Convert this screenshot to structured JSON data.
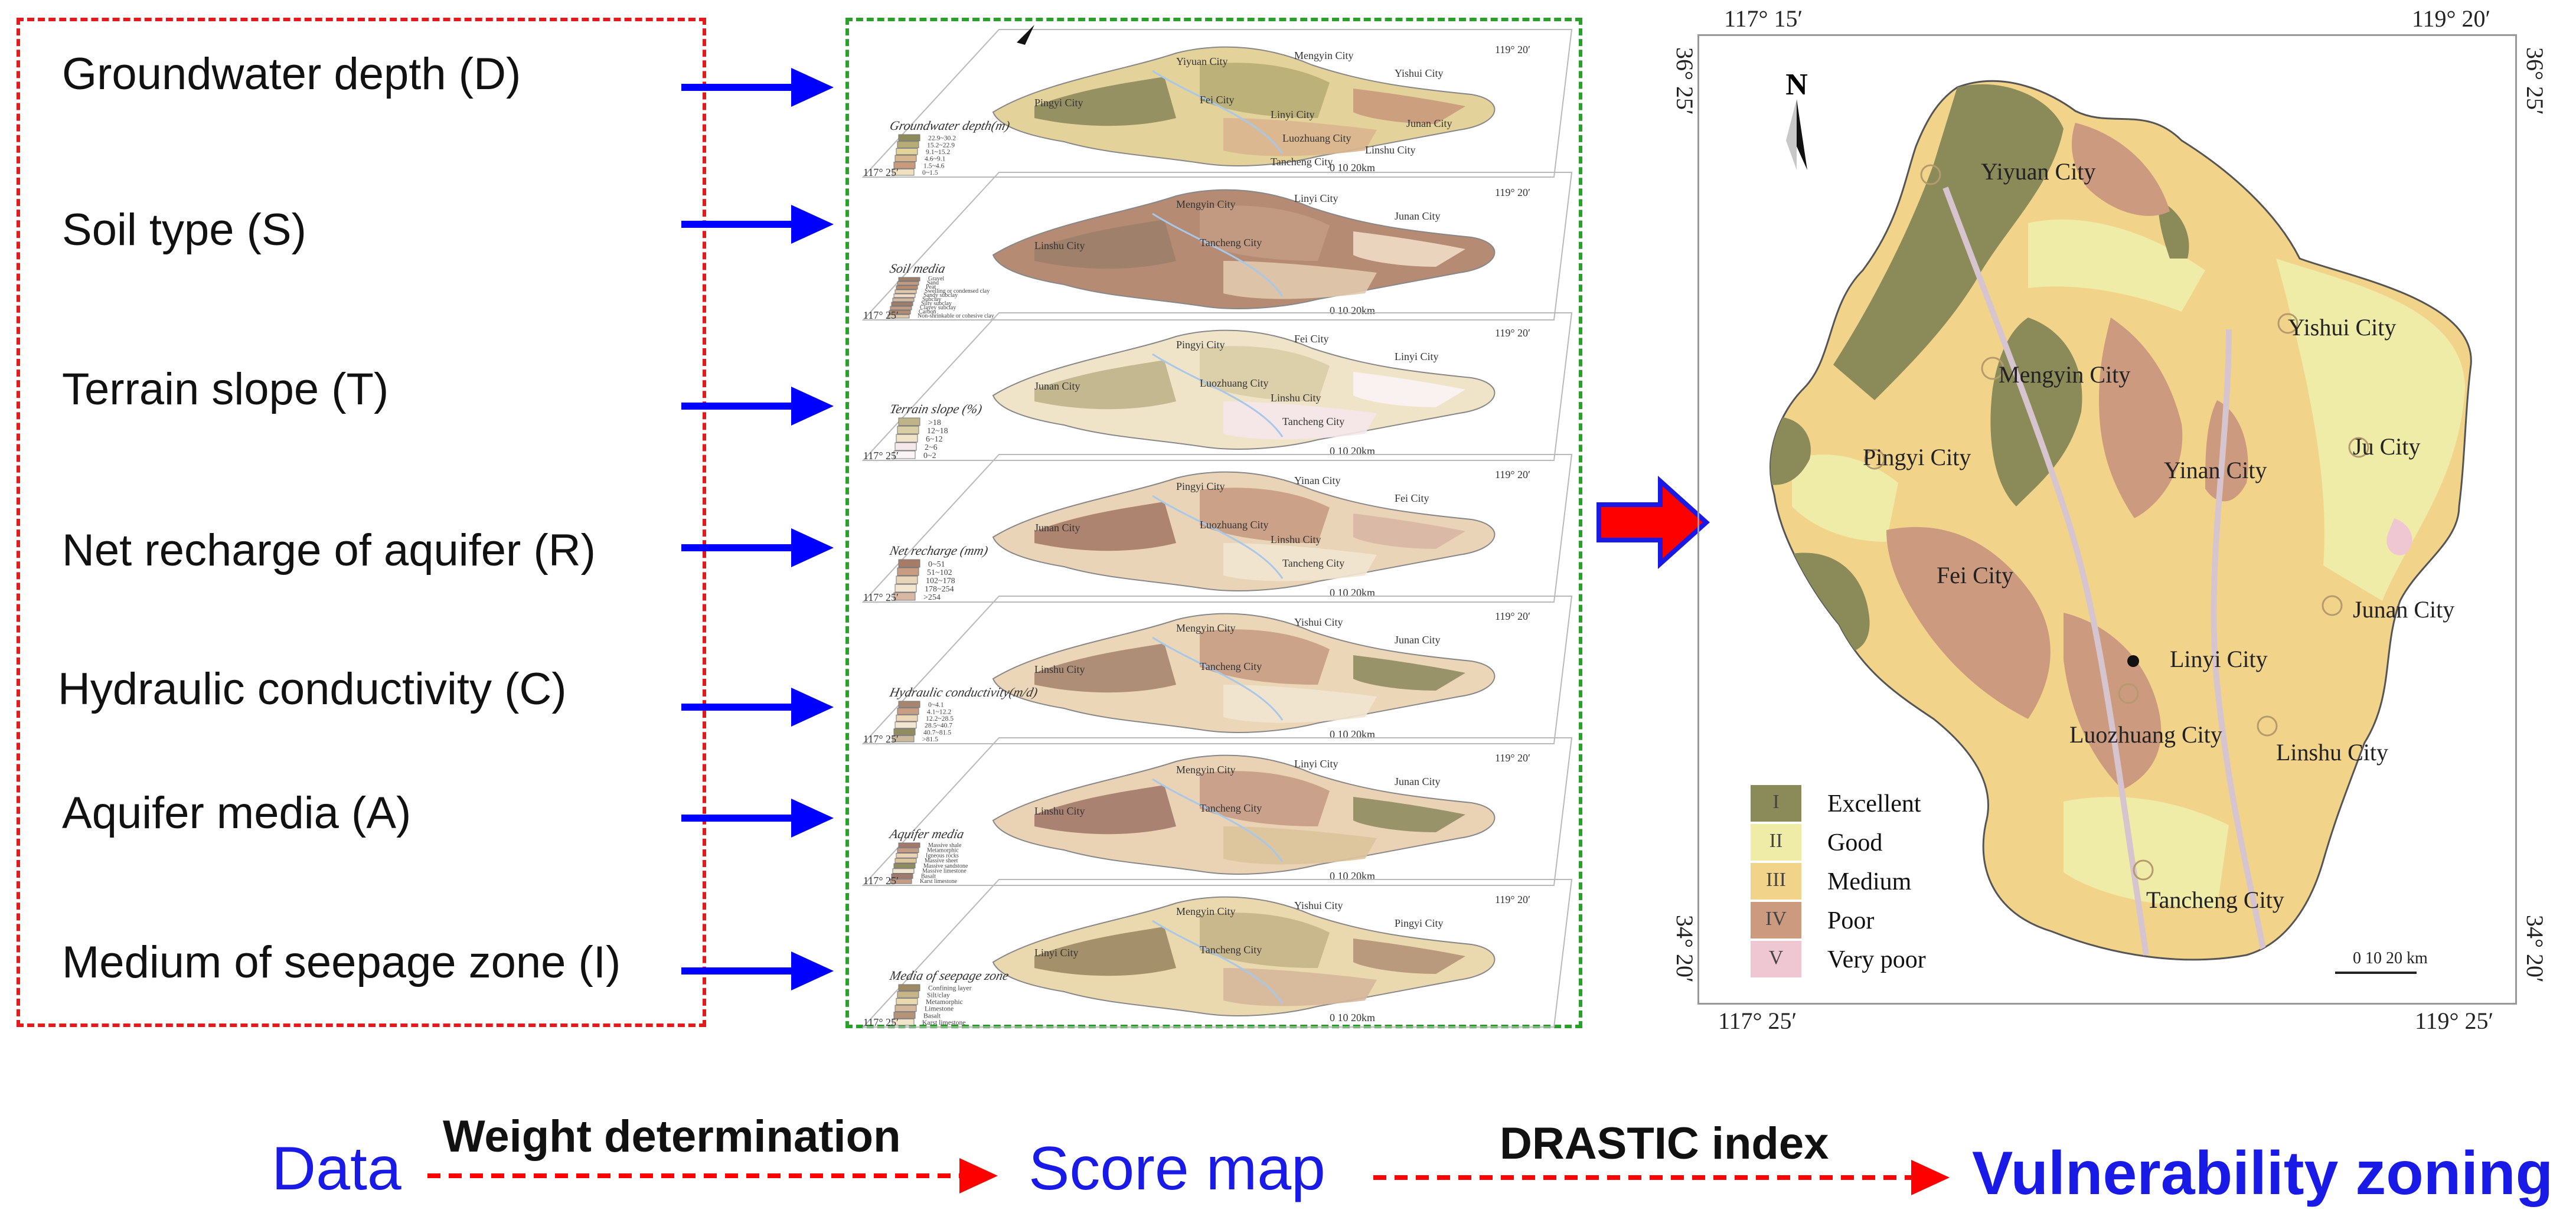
{
  "data_factors": [
    {
      "label": "Groundwater depth (D)"
    },
    {
      "label": "Soil type (S)"
    },
    {
      "label": "Terrain slope (T)"
    },
    {
      "label": "Net recharge of aquifer (R)"
    },
    {
      "label": "Hydraulic conductivity (C)"
    },
    {
      "label": "Aquifer media (A)"
    },
    {
      "label": "Medium of seepage zone (I)"
    }
  ],
  "score_maps": [
    {
      "legend_title": "Groundwater depth(m)",
      "classes": [
        "22.9~30.2",
        "15.2~22.9",
        "9.1~15.2",
        "4.6~9.1",
        "1.5~4.6",
        "0~1.5"
      ],
      "places": [
        "Yiyuan City",
        "Mengyin City",
        "Yishui City",
        "Pingyi City",
        "Fei City",
        "Linyi City",
        "Luozhuang City",
        "Junan City",
        "Linshu City",
        "Tancheng City"
      ]
    },
    {
      "legend_title": "Soil media",
      "classes": [
        "Gravel",
        "Sand",
        "Peat",
        "Swelling or condensed clay",
        "Sandy subclay",
        "Subclay",
        "Silty subclay",
        "Clayey subclay",
        "Carbon",
        "Non-shrinkable or cohesive clay"
      ],
      "places": [
        "Mengyin City",
        "Linyi City",
        "Junan City",
        "Linshu City",
        "Tancheng City"
      ]
    },
    {
      "legend_title": "Terrain slope (%)",
      "classes": [
        ">18",
        "12~18",
        "6~12",
        "2~6",
        "0~2"
      ],
      "places": [
        "Pingyi City",
        "Fei City",
        "Linyi City",
        "Junan City",
        "Luozhuang City",
        "Linshu City",
        "Tancheng City"
      ]
    },
    {
      "legend_title": "Net recharge (mm)",
      "classes": [
        "0~51",
        "51~102",
        "102~178",
        "178~254",
        ">254"
      ],
      "places": [
        "Pingyi City",
        "Yinan City",
        "Fei City",
        "Junan City",
        "Luozhuang City",
        "Linshu City",
        "Tancheng City"
      ]
    },
    {
      "legend_title": "Hydraulic conductivity(m/d)",
      "classes": [
        "0~4.1",
        "4.1~12.2",
        "12.2~28.5",
        "28.5~40.7",
        "40.7~81.5",
        ">81.5"
      ],
      "places": [
        "Mengyin City",
        "Yishui City",
        "Junan City",
        "Linshu City",
        "Tancheng City"
      ]
    },
    {
      "legend_title": "Aquifer media",
      "classes": [
        "Massive shale",
        "Metamorphic",
        "Igneous rocks",
        "Massive sheet",
        "Massive sandstone",
        "Massive limestone",
        "Basalt",
        "Karst limestone"
      ],
      "places": [
        "Mengyin City",
        "Linyi City",
        "Junan City",
        "Linshu City",
        "Tancheng City"
      ]
    },
    {
      "legend_title": "Media of seepage zone",
      "classes": [
        "Confining layer",
        "Silt/clay",
        "Metamorphic",
        "Limestone",
        "Basalt",
        "Karst limestone"
      ],
      "places": [
        "Mengyin City",
        "Yishui City",
        "Pingyi City",
        "Linyi City",
        "Tancheng City"
      ]
    }
  ],
  "score_map_scalebar": "0   10  20km",
  "score_map_coords": {
    "left": "117° 25′",
    "right": "119° 20′"
  },
  "result_map": {
    "north_label": "N",
    "coords": {
      "top_left": "117° 15′",
      "top_right": "119° 20′",
      "bottom_left": "117° 25′",
      "bottom_right": "119° 25′",
      "left_top": "36° 25′",
      "left_bottom": "34° 20′",
      "right_top": "36° 25′",
      "right_bottom": "34° 20′"
    },
    "cities": [
      "Yiyuan City",
      "Yishui City",
      "Mengyin City",
      "Pingyi City",
      "Yinan City",
      "Ju City",
      "Fei City",
      "Junan City",
      "Linyi City",
      "Luozhuang City",
      "Linshu City",
      "Tancheng City"
    ],
    "legend": [
      {
        "numeral": "I",
        "label": "Excellent",
        "color": "#8b8b5a"
      },
      {
        "numeral": "II",
        "label": "Good",
        "color": "#eeeca6"
      },
      {
        "numeral": "III",
        "label": "Medium",
        "color": "#f1d48a"
      },
      {
        "numeral": "IV",
        "label": "Poor",
        "color": "#cc9b7f"
      },
      {
        "numeral": "V",
        "label": "Very poor",
        "color": "#efc7d2"
      }
    ],
    "scale_bar": "0   10   20 km"
  },
  "flow": {
    "step1": "Data",
    "arrow1": "Weight determination",
    "step2": "Score map",
    "arrow2": "DRASTIC index",
    "step3": "Vulnerability zoning"
  },
  "colors": {
    "data_box_border": "#e31a1c",
    "score_box_border": "#2aa02a",
    "arrow_blue": "#0000ff",
    "flow_text": "#1a1ae6",
    "big_arrow_fill": "#ff0000"
  }
}
